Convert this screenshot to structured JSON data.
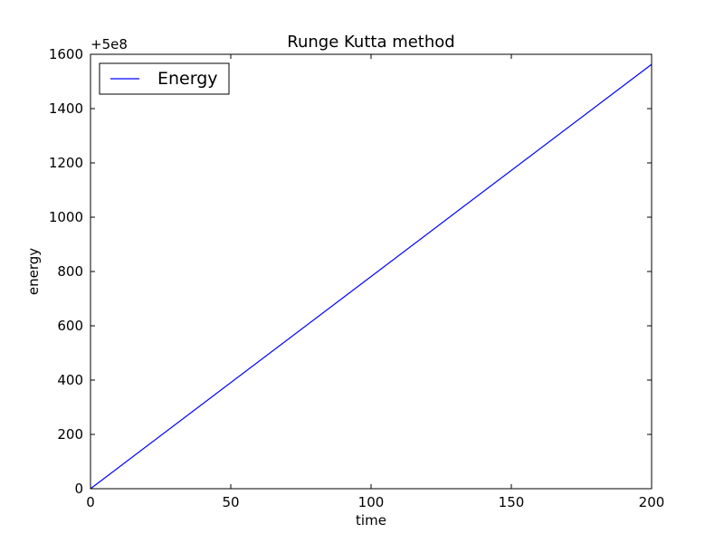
{
  "chart_data": {
    "type": "line",
    "title": "Runge Kutta method",
    "xlabel": "time",
    "ylabel": "energy",
    "offset_label": "+5e8",
    "xlim": [
      0,
      200
    ],
    "ylim": [
      0,
      1600
    ],
    "xticks": [
      0,
      50,
      100,
      150,
      200
    ],
    "yticks": [
      0,
      200,
      400,
      600,
      800,
      1000,
      1200,
      1400,
      1600
    ],
    "grid": false,
    "legend_position": "upper-left",
    "series": [
      {
        "name": "Energy",
        "color": "#0000ff",
        "x": [
          0,
          200
        ],
        "y": [
          0,
          1563
        ]
      }
    ]
  }
}
